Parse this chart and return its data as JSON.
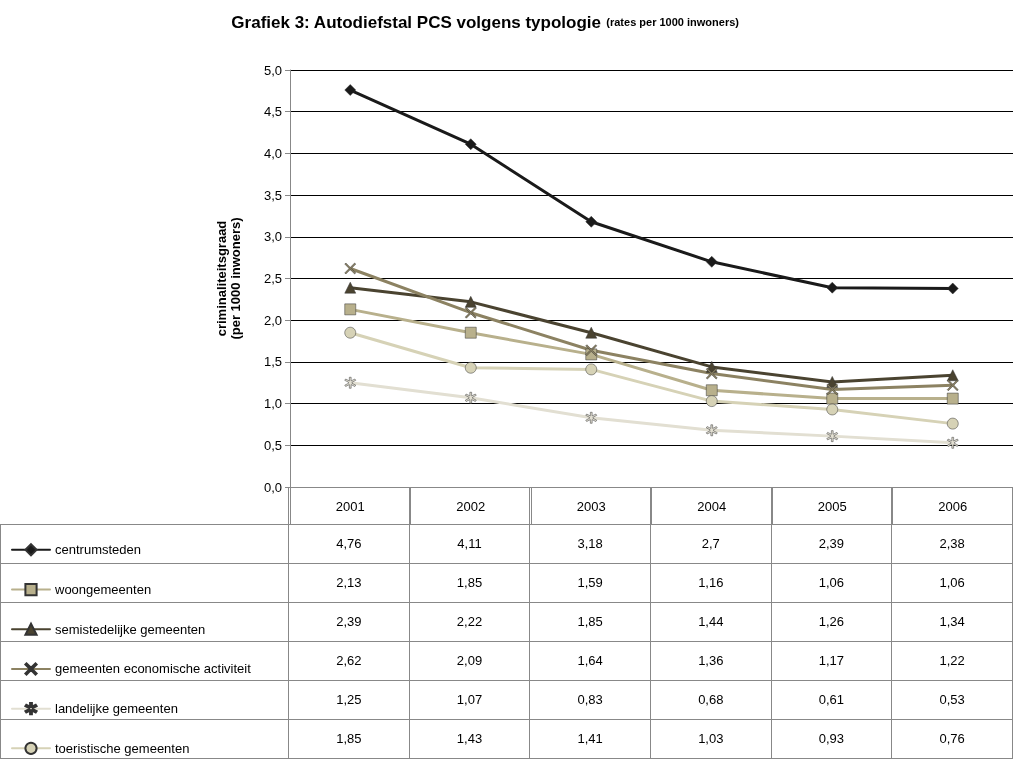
{
  "chart_data": {
    "type": "line",
    "title": "Grafiek 3: Autodiefstal PCS volgens typologie",
    "subtitle": "(rates per 1000 inwoners)",
    "ylabel": "criminaliteitsgraad\n(per 1000 inwoners)",
    "categories": [
      "2001",
      "2002",
      "2003",
      "2004",
      "2005",
      "2006"
    ],
    "ylim": [
      0,
      5
    ],
    "yticks": [
      {
        "value": 0,
        "label": "0,0"
      },
      {
        "value": 0.5,
        "label": "0,5"
      },
      {
        "value": 1,
        "label": "1,0"
      },
      {
        "value": 1.5,
        "label": "1,5"
      },
      {
        "value": 2,
        "label": "2,0"
      },
      {
        "value": 2.5,
        "label": "2,5"
      },
      {
        "value": 3,
        "label": "3,0"
      },
      {
        "value": 3.5,
        "label": "3,5"
      },
      {
        "value": 4,
        "label": "4,0"
      },
      {
        "value": 4.5,
        "label": "4,5"
      },
      {
        "value": 5,
        "label": "5,0"
      }
    ],
    "grid": "y",
    "legend": "bottom left",
    "series": [
      {
        "name": "centrumsteden",
        "color": "#1a1a1a",
        "marker": "diamond",
        "values": [
          4.76,
          4.11,
          3.18,
          2.7,
          2.39,
          2.38
        ],
        "value_labels": [
          "4,76",
          "4,11",
          "3,18",
          "2,7",
          "2,39",
          "2,38"
        ]
      },
      {
        "name": "woongemeenten",
        "color": "#b8b08c",
        "marker": "square",
        "values": [
          2.13,
          1.85,
          1.59,
          1.16,
          1.06,
          1.06
        ],
        "value_labels": [
          "2,13",
          "1,85",
          "1,59",
          "1,16",
          "1,06",
          "1,06"
        ]
      },
      {
        "name": "semistedelijke gemeenten",
        "color": "#4a4330",
        "marker": "triangle",
        "values": [
          2.39,
          2.22,
          1.85,
          1.44,
          1.26,
          1.34
        ],
        "value_labels": [
          "2,39",
          "2,22",
          "1,85",
          "1,44",
          "1,26",
          "1,34"
        ]
      },
      {
        "name": "gemeenten economische activiteit",
        "color": "#8c8262",
        "marker": "cross",
        "values": [
          2.62,
          2.09,
          1.64,
          1.36,
          1.17,
          1.22
        ],
        "value_labels": [
          "2,62",
          "2,09",
          "1,64",
          "1,36",
          "1,17",
          "1,22"
        ]
      },
      {
        "name": "landelijke gemeenten",
        "color": "#e2dfd2",
        "marker": "star",
        "values": [
          1.25,
          1.07,
          0.83,
          0.68,
          0.61,
          0.53
        ],
        "value_labels": [
          "1,25",
          "1,07",
          "0,83",
          "0,68",
          "0,61",
          "0,53"
        ]
      },
      {
        "name": "toeristische gemeenten",
        "color": "#d6d2b6",
        "marker": "circle",
        "values": [
          1.85,
          1.43,
          1.41,
          1.03,
          0.93,
          0.76
        ],
        "value_labels": [
          "1,85",
          "1,43",
          "1,41",
          "1,03",
          "0,93",
          "0,76"
        ]
      }
    ]
  }
}
